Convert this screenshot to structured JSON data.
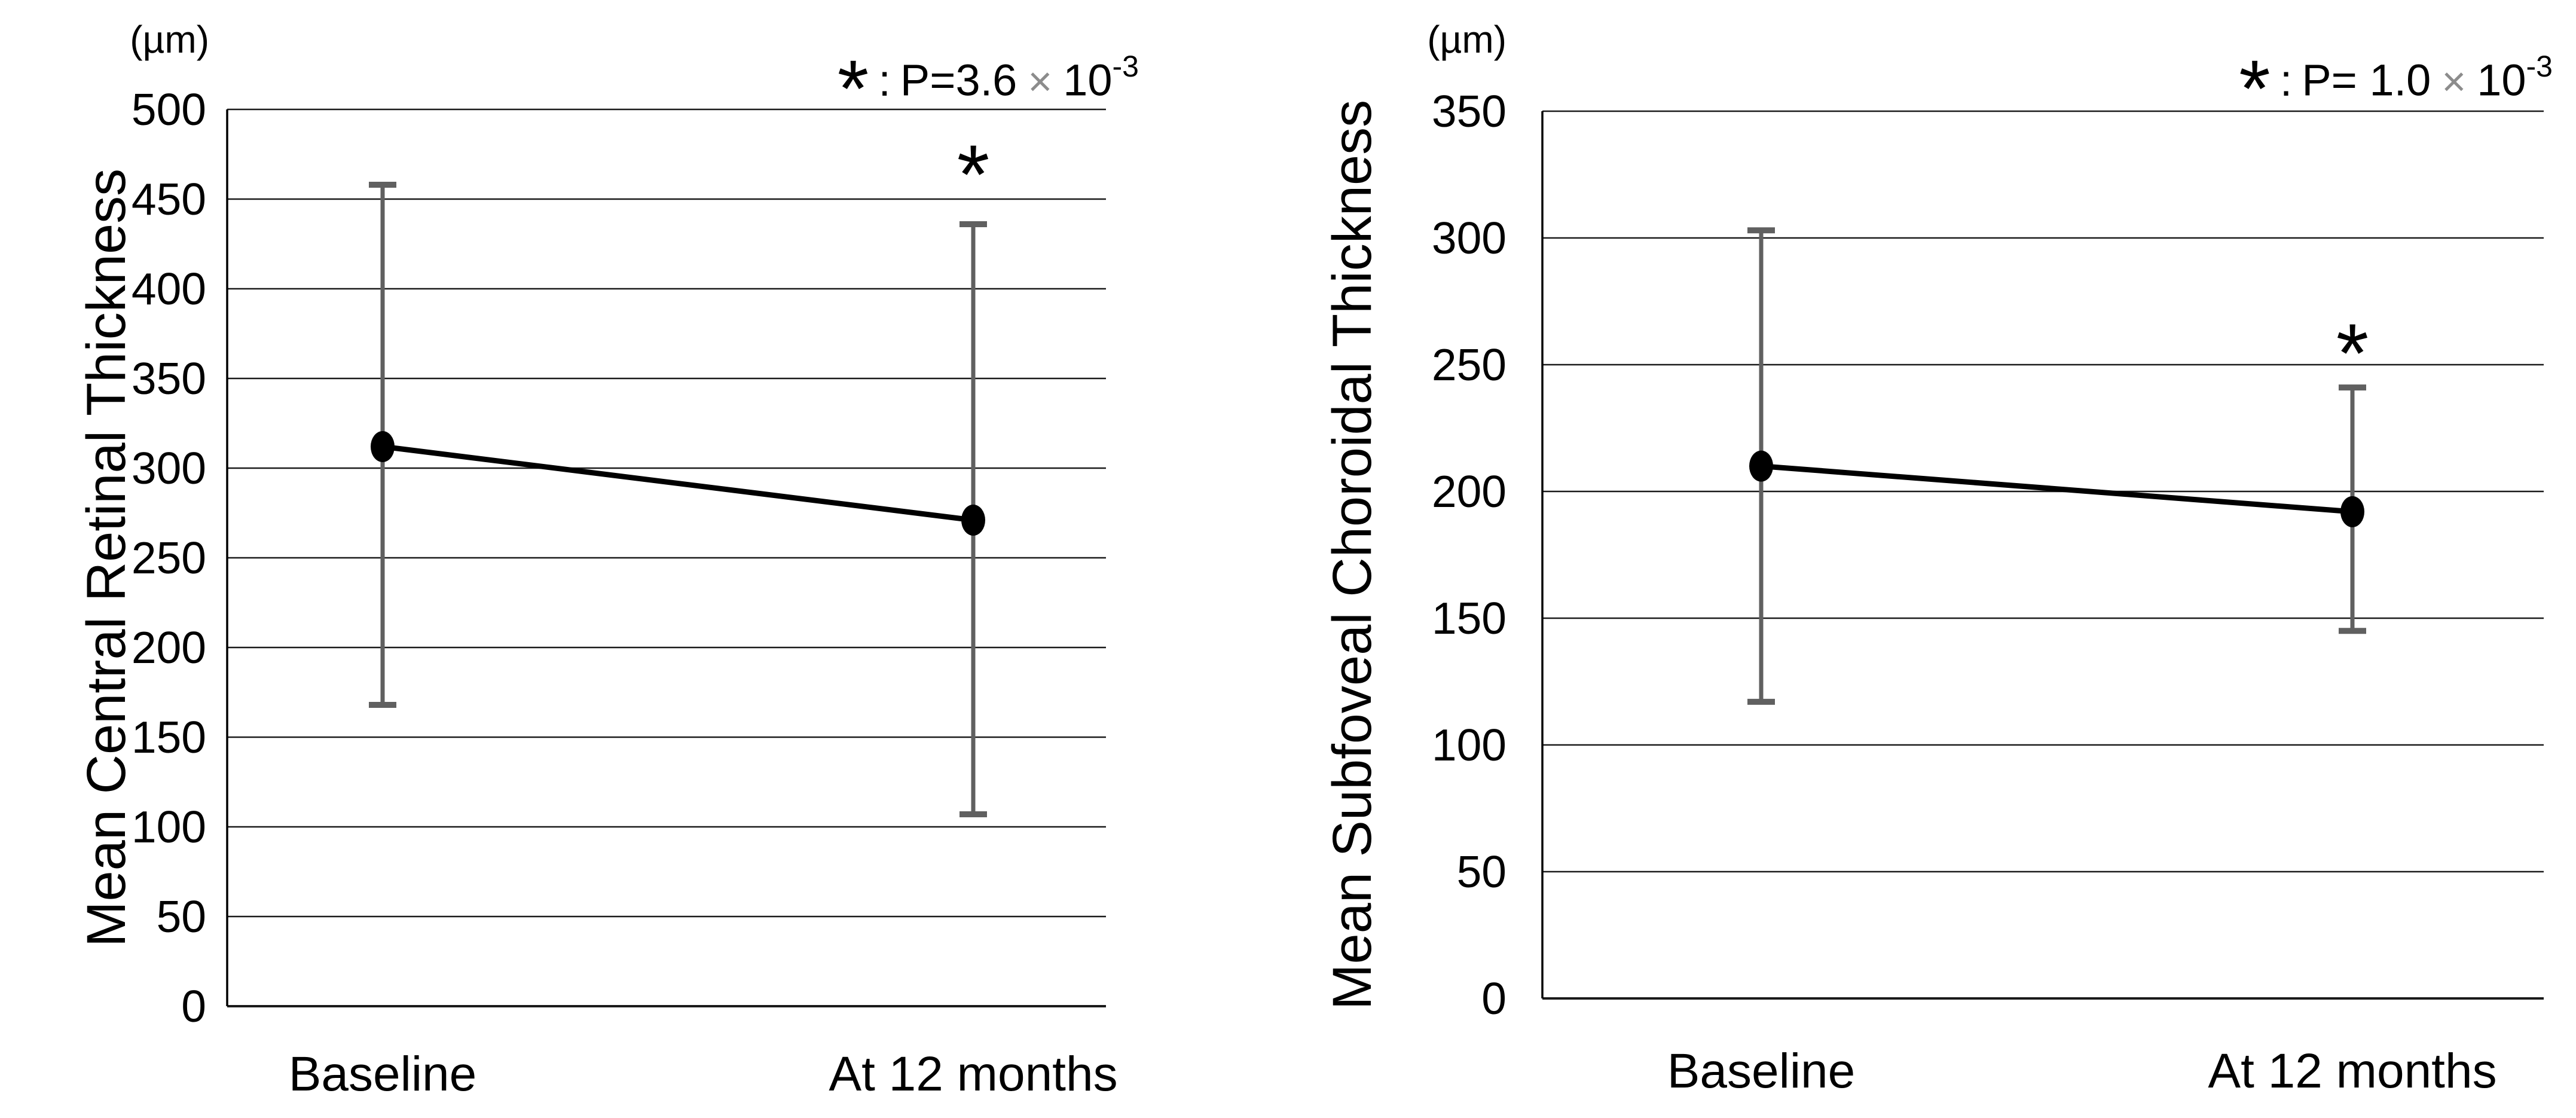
{
  "figure": {
    "background": "#ffffff"
  },
  "colors": {
    "line": "#000000",
    "marker": "#000000",
    "error_bar": "#606060",
    "gridline": "#1a1a1a",
    "axis": "#000000",
    "times_sign": "#8c8c8c",
    "text": "#000000"
  },
  "chart_data": [
    {
      "type": "line",
      "title": "",
      "ylabel": "Mean Central Retinal Thickness",
      "unit": "(µm)",
      "categories": [
        "Baseline",
        "At 12 months"
      ],
      "series": [
        {
          "name": "Mean Central Retinal Thickness (µm)",
          "values": [
            312,
            271
          ],
          "error_bar_low": [
            168,
            107
          ],
          "error_bar_high": [
            458,
            436
          ]
        }
      ],
      "ylim": [
        0,
        500
      ],
      "yticks": [
        0,
        50,
        100,
        150,
        200,
        250,
        300,
        350,
        400,
        450,
        500
      ],
      "grid": "horizontal",
      "legend": "none",
      "significance": {
        "marker": "*",
        "marked_category": "At 12 months",
        "annotation": {
          "star": "*",
          "colon": ":",
          "p_value": "P=3.6",
          "times": "×",
          "power_base": "10",
          "power_exponent": "-3"
        }
      }
    },
    {
      "type": "line",
      "title": "",
      "ylabel": "Mean Subfoveal Choroidal Thickness",
      "unit": "(µm)",
      "categories": [
        "Baseline",
        "At 12 months"
      ],
      "series": [
        {
          "name": "Mean Subfoveal Choroidal Thickness (µm)",
          "values": [
            210,
            192
          ],
          "error_bar_low": [
            117,
            145
          ],
          "error_bar_high": [
            303,
            241
          ]
        }
      ],
      "ylim": [
        0,
        350
      ],
      "yticks": [
        0,
        50,
        100,
        150,
        200,
        250,
        300,
        350
      ],
      "grid": "horizontal",
      "legend": "none",
      "significance": {
        "marker": "*",
        "marked_category": "At 12 months",
        "annotation": {
          "star": "*",
          "colon": ":",
          "p_value": "P= 1.0",
          "times": "×",
          "power_base": "10",
          "power_exponent": "-3"
        }
      }
    }
  ]
}
